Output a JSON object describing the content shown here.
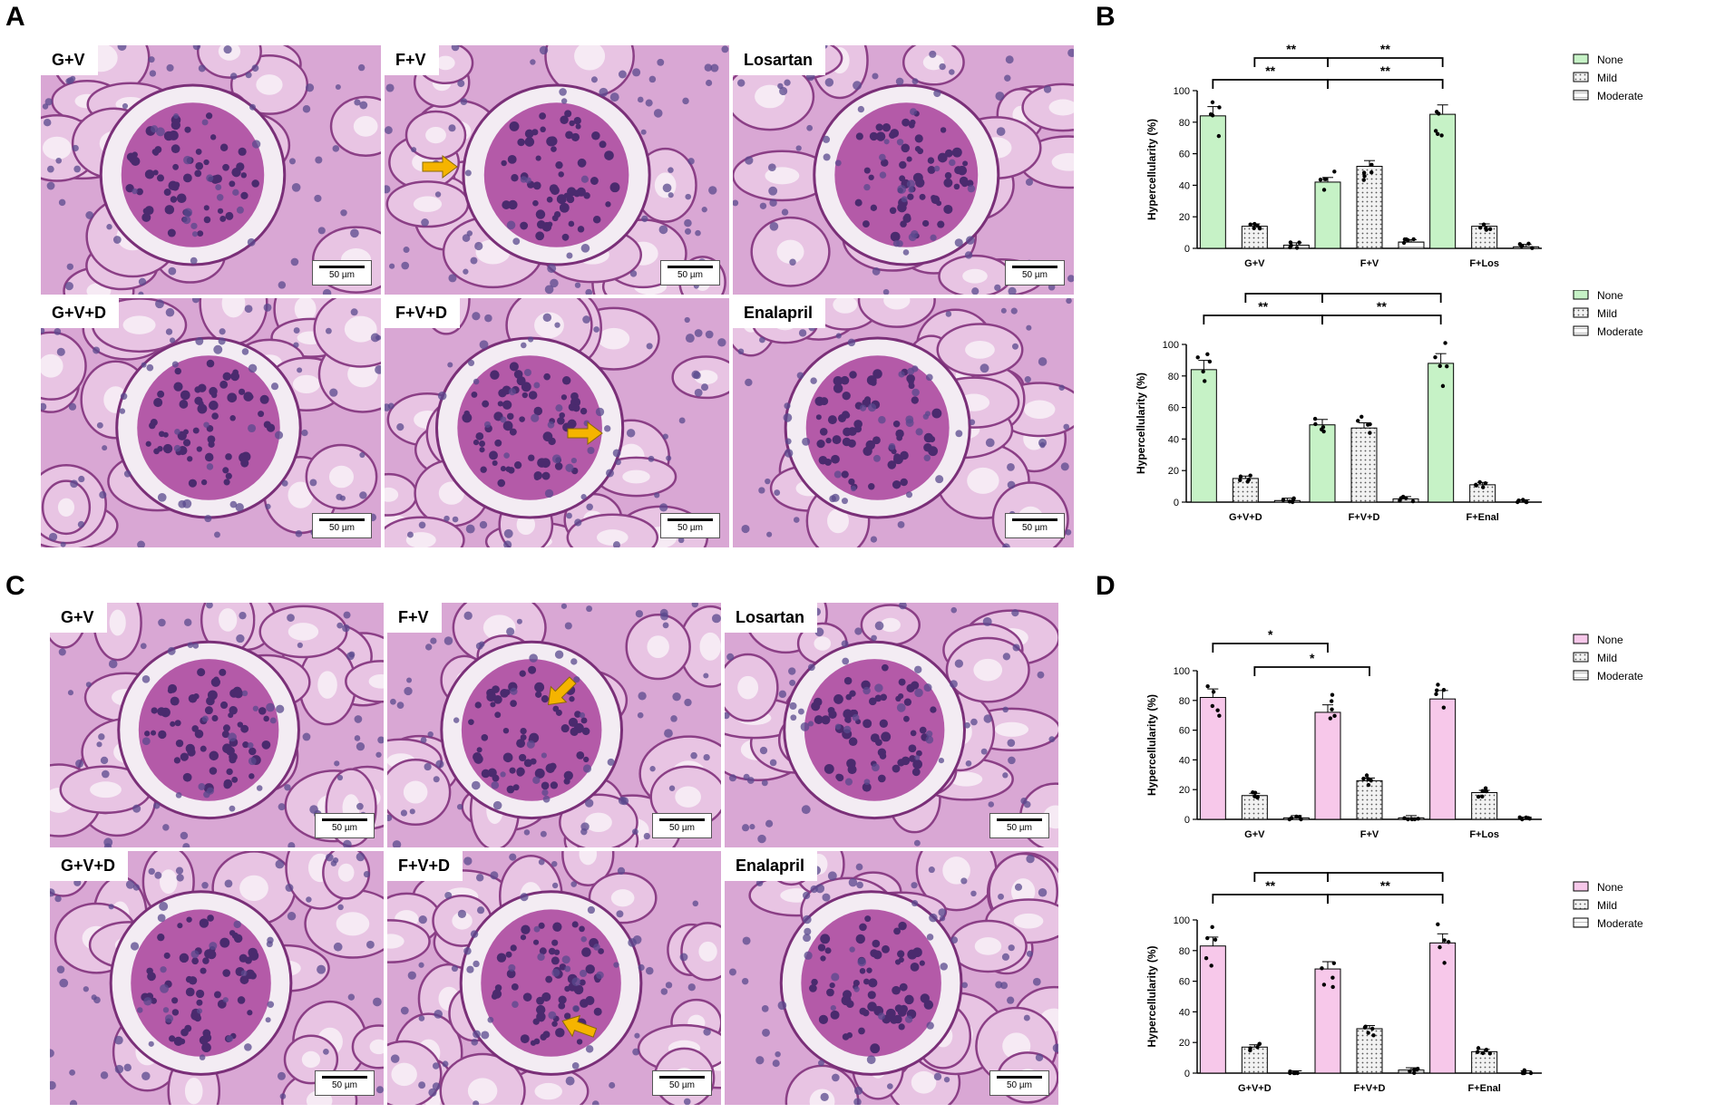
{
  "panels": {
    "A": {
      "letter": "A",
      "images": [
        {
          "label": "G+V",
          "scale": "50 µm"
        },
        {
          "label": "F+V",
          "scale": "50 µm"
        },
        {
          "label": "Losartan",
          "scale": "50 µm"
        },
        {
          "label": "G+V+D",
          "scale": "50 µm"
        },
        {
          "label": "F+V+D",
          "scale": "50 µm"
        },
        {
          "label": "Enalapril",
          "scale": "50 µm"
        }
      ]
    },
    "B": {
      "letter": "B"
    },
    "C": {
      "letter": "C",
      "images": [
        {
          "label": "G+V",
          "scale": "50 µm"
        },
        {
          "label": "F+V",
          "scale": "50 µm"
        },
        {
          "label": "Losartan",
          "scale": "50 µm"
        },
        {
          "label": "G+V+D",
          "scale": "50 µm"
        },
        {
          "label": "F+V+D",
          "scale": "50 µm"
        },
        {
          "label": "Enalapril",
          "scale": "50 µm"
        }
      ]
    },
    "D": {
      "letter": "D"
    }
  },
  "colors": {
    "green": "#c6f2c6",
    "pink": "#f7c8ea",
    "stain": "#d9a7d4",
    "nuclei": "#4a2a6e",
    "arrow": "#f5b400"
  },
  "chart_data": [
    {
      "type": "bar",
      "categories": [
        "G+V",
        "F+V",
        "F+Los"
      ],
      "ylabel": "Hypercellularity (%)",
      "ylim": [
        0,
        100
      ],
      "yticks": [
        "0",
        "20",
        "40",
        "60",
        "80",
        "100"
      ],
      "colors": [
        "#c6f2c6",
        "dots",
        "stripes"
      ],
      "series": [
        {
          "name": "None",
          "values": [
            84,
            42,
            85
          ]
        },
        {
          "name": "Mild",
          "values": [
            14,
            52,
            14
          ]
        },
        {
          "name": "Moderate",
          "values": [
            2,
            4,
            1
          ]
        }
      ],
      "significance": [
        {
          "from": [
            0,
            0
          ],
          "to": [
            1,
            0
          ],
          "label": "**"
        },
        {
          "from": [
            1,
            0
          ],
          "to": [
            2,
            0
          ],
          "label": "**"
        },
        {
          "from": [
            0,
            1
          ],
          "to": [
            1,
            0
          ],
          "label": "**"
        },
        {
          "from": [
            1,
            0
          ],
          "to": [
            2,
            0
          ],
          "label": "**"
        }
      ]
    },
    {
      "type": "bar",
      "categories": [
        "G+V+D",
        "F+V+D",
        "F+Enal"
      ],
      "ylabel": "Hypercellularity (%)",
      "ylim": [
        0,
        100
      ],
      "yticks": [
        "0",
        "20",
        "40",
        "60",
        "80",
        "100"
      ],
      "colors": [
        "#c6f2c6",
        "dots",
        "stripes"
      ],
      "series": [
        {
          "name": "None",
          "values": [
            84,
            49,
            88
          ]
        },
        {
          "name": "Mild",
          "values": [
            15,
            47,
            11
          ]
        },
        {
          "name": "Moderate",
          "values": [
            1,
            2,
            0
          ]
        }
      ],
      "significance": [
        {
          "label": "**"
        },
        {
          "label": "**"
        },
        {
          "label": "**"
        },
        {
          "label": "**"
        }
      ]
    },
    {
      "type": "bar",
      "categories": [
        "G+V",
        "F+V",
        "F+Los"
      ],
      "ylabel": "Hypercellularity (%)",
      "ylim": [
        0,
        100
      ],
      "yticks": [
        "0",
        "20",
        "40",
        "60",
        "80",
        "100"
      ],
      "colors": [
        "#f7c8ea",
        "dots",
        "stripes"
      ],
      "series": [
        {
          "name": "None",
          "values": [
            82,
            72,
            81
          ]
        },
        {
          "name": "Mild",
          "values": [
            16,
            26,
            18
          ]
        },
        {
          "name": "Moderate",
          "values": [
            1,
            1,
            0
          ]
        }
      ],
      "significance": [
        {
          "label": "*"
        },
        {
          "label": "*"
        }
      ]
    },
    {
      "type": "bar",
      "categories": [
        "G+V+D",
        "F+V+D",
        "F+Enal"
      ],
      "ylabel": "Hypercellularity (%)",
      "ylim": [
        0,
        100
      ],
      "yticks": [
        "0",
        "20",
        "40",
        "60",
        "80",
        "100"
      ],
      "colors": [
        "#f7c8ea",
        "dots",
        "stripes"
      ],
      "series": [
        {
          "name": "None",
          "values": [
            83,
            68,
            85
          ]
        },
        {
          "name": "Mild",
          "values": [
            17,
            29,
            14
          ]
        },
        {
          "name": "Moderate",
          "values": [
            0,
            2,
            0
          ]
        }
      ],
      "significance": [
        {
          "label": "**"
        },
        {
          "label": "**"
        },
        {
          "label": "**"
        },
        {
          "label": "**"
        }
      ]
    }
  ]
}
